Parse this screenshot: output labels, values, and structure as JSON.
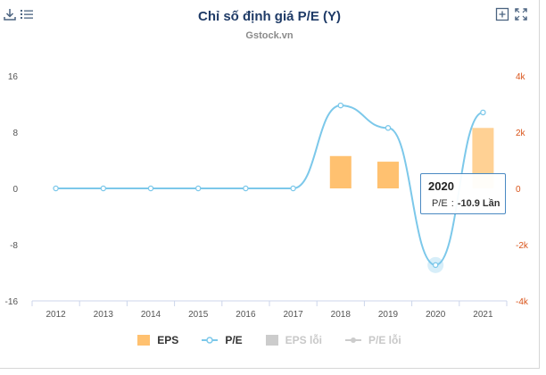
{
  "header": {
    "title": "Chỉ số định giá P/E (Y)",
    "subtitle": "Gstock.vn"
  },
  "toolbar": {
    "left_icons": [
      "download-icon",
      "menu-icon"
    ],
    "right_icons": [
      "add-box-icon",
      "fullscreen-icon"
    ]
  },
  "colors": {
    "eps": "#ffc170",
    "pe": "#7cc8ea",
    "inactive": "#cccccc",
    "right_axis": "#d9541a",
    "title": "#1f3b67"
  },
  "tooltip": {
    "year": "2020",
    "series": "P/E",
    "value_text": "-10.9 Lần"
  },
  "chart_data": {
    "type": "bar+line",
    "title": "Chỉ số định giá P/E (Y)",
    "subtitle": "Gstock.vn",
    "categories": [
      "2012",
      "2013",
      "2014",
      "2015",
      "2016",
      "2017",
      "2018",
      "2019",
      "2020",
      "2021"
    ],
    "series": [
      {
        "name": "EPS",
        "type": "bar",
        "axis": "right",
        "values": [
          0,
          0,
          0,
          0,
          0,
          0,
          1150,
          950,
          0,
          2150
        ]
      },
      {
        "name": "P/E",
        "type": "line",
        "axis": "left",
        "values": [
          0,
          0,
          0,
          0,
          0,
          0,
          11.8,
          8.6,
          -10.9,
          10.8
        ]
      },
      {
        "name": "EPS lỗi",
        "type": "bar",
        "axis": "right",
        "inactive": true
      },
      {
        "name": "P/E lỗi",
        "type": "line",
        "axis": "left",
        "inactive": true
      }
    ],
    "y_left": {
      "ticks": [
        16,
        8,
        0,
        -8,
        -16
      ],
      "ylim": [
        -16,
        16
      ]
    },
    "y_right": {
      "ticks": [
        "4k",
        "2k",
        "0",
        "-2k",
        "-4k"
      ],
      "ylim": [
        -4000,
        4000
      ]
    },
    "legend": [
      "EPS",
      "P/E",
      "EPS lỗi",
      "P/E lỗi"
    ],
    "legend_position": "bottom",
    "grid": false,
    "highlighted_point": {
      "category": "2020",
      "series": "P/E"
    }
  }
}
